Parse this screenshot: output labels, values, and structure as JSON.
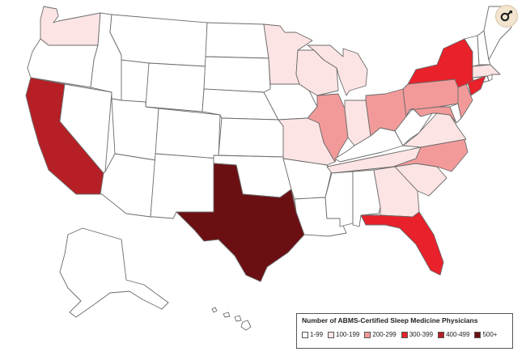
{
  "legend": {
    "title": "Number of ABMS-Certified Sleep Medicine Physicians",
    "bins": [
      {
        "label": "1-99",
        "color": "#ffffff"
      },
      {
        "label": "100-199",
        "color": "#fde4e4"
      },
      {
        "label": "200-299",
        "color": "#f29a9a"
      },
      {
        "label": "300-399",
        "color": "#e8212a"
      },
      {
        "label": "400-499",
        "color": "#b61f25"
      },
      {
        "label": "500+",
        "color": "#6b0f13"
      }
    ]
  },
  "states": {
    "WA": "100-199",
    "OR": "1-99",
    "CA": "400-499",
    "NV": "1-99",
    "ID": "1-99",
    "MT": "1-99",
    "WY": "1-99",
    "UT": "1-99",
    "AZ": "1-99",
    "CO": "1-99",
    "NM": "1-99",
    "ND": "1-99",
    "SD": "1-99",
    "NE": "1-99",
    "KS": "1-99",
    "OK": "1-99",
    "TX": "500+",
    "MN": "100-199",
    "IA": "1-99",
    "MO": "100-199",
    "AR": "1-99",
    "LA": "1-99",
    "WI": "100-199",
    "IL": "200-299",
    "MI": "100-199",
    "IN": "100-199",
    "OH": "200-299",
    "KY": "1-99",
    "TN": "100-199",
    "MS": "1-99",
    "AL": "1-99",
    "GA": "100-199",
    "FL": "300-399",
    "SC": "100-199",
    "NC": "200-299",
    "VA": "100-199",
    "WV": "1-99",
    "PA": "200-299",
    "NY": "300-399",
    "NJ": "200-299",
    "MD": "200-299",
    "DE": "1-99",
    "CT": "1-99",
    "RI": "1-99",
    "MA": "100-199",
    "VT": "1-99",
    "NH": "1-99",
    "ME": "1-99",
    "AK": "1-99",
    "HI": "1-99",
    "NYC_ACCENT": "300-399"
  }
}
